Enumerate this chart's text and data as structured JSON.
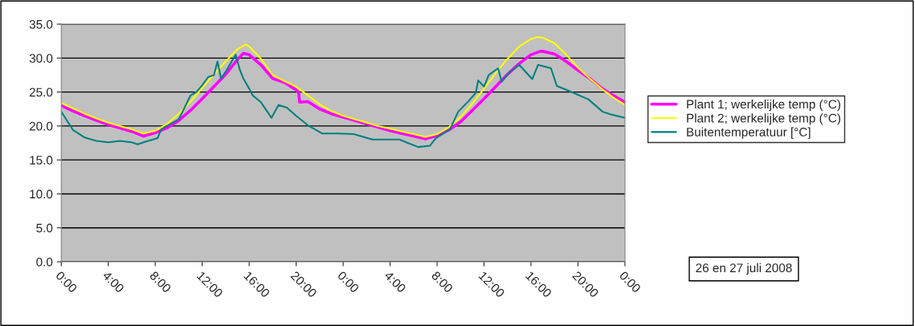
{
  "chart_data": {
    "type": "line",
    "xlim": [
      "2008-07-26T00:00",
      "2008-07-28T00:00"
    ],
    "ylim": [
      0,
      35
    ],
    "xticks": [
      {
        "value": "2008-07-26T00:00",
        "label": "0:00"
      },
      {
        "value": "2008-07-26T04:00",
        "label": "4:00"
      },
      {
        "value": "2008-07-26T08:00",
        "label": "8:00"
      },
      {
        "value": "2008-07-26T12:00",
        "label": "12:00"
      },
      {
        "value": "2008-07-26T16:00",
        "label": "16:00"
      },
      {
        "value": "2008-07-26T20:00",
        "label": "20:00"
      },
      {
        "value": "2008-07-27T00:00",
        "label": "0:00"
      },
      {
        "value": "2008-07-27T04:00",
        "label": "4:00"
      },
      {
        "value": "2008-07-27T08:00",
        "label": "8:00"
      },
      {
        "value": "2008-07-27T12:00",
        "label": "12:00"
      },
      {
        "value": "2008-07-27T16:00",
        "label": "16:00"
      },
      {
        "value": "2008-07-27T20:00",
        "label": "20:00"
      },
      {
        "value": "2008-07-28T00:00",
        "label": "0:00"
      }
    ],
    "yticks": [
      {
        "value": 0,
        "label": "0.0"
      },
      {
        "value": 5,
        "label": "5.0"
      },
      {
        "value": 10,
        "label": "10.0"
      },
      {
        "value": 15,
        "label": "15.0"
      },
      {
        "value": 20,
        "label": "20.0"
      },
      {
        "value": 25,
        "label": "25.0"
      },
      {
        "value": 30,
        "label": "30.0"
      },
      {
        "value": 35,
        "label": "35.0"
      }
    ],
    "grid": "y",
    "legend": "right",
    "marker": "none",
    "line_style": "solid",
    "annotations": [
      "26 en 27 juli 2008"
    ],
    "series": [
      {
        "name": "Plant 1; werkelijke temp (°C)",
        "color": "#ff00ff",
        "x": [
          "2008-07-26T00:00",
          "2008-07-26T01:00",
          "2008-07-26T02:00",
          "2008-07-26T03:00",
          "2008-07-26T04:00",
          "2008-07-26T05:00",
          "2008-07-26T06:00",
          "2008-07-26T07:00",
          "2008-07-26T08:00",
          "2008-07-26T09:00",
          "2008-07-26T10:00",
          "2008-07-26T11:00",
          "2008-07-26T12:00",
          "2008-07-26T13:00",
          "2008-07-26T14:00",
          "2008-07-26T15:00",
          "2008-07-26T15:30",
          "2008-07-26T16:00",
          "2008-07-26T17:00",
          "2008-07-26T18:00",
          "2008-07-26T19:00",
          "2008-07-26T20:00",
          "2008-07-26T20:12",
          "2008-07-26T20:18",
          "2008-07-26T21:00",
          "2008-07-26T22:00",
          "2008-07-26T23:00",
          "2008-07-27T00:00",
          "2008-07-27T01:00",
          "2008-07-27T02:00",
          "2008-07-27T03:00",
          "2008-07-27T04:00",
          "2008-07-27T05:00",
          "2008-07-27T06:00",
          "2008-07-27T07:00",
          "2008-07-27T08:00",
          "2008-07-27T09:00",
          "2008-07-27T10:00",
          "2008-07-27T11:00",
          "2008-07-27T12:00",
          "2008-07-27T13:00",
          "2008-07-27T14:00",
          "2008-07-27T15:00",
          "2008-07-27T16:00",
          "2008-07-27T16:48",
          "2008-07-27T17:00",
          "2008-07-27T18:00",
          "2008-07-27T19:00",
          "2008-07-27T20:00",
          "2008-07-27T21:00",
          "2008-07-27T22:00",
          "2008-07-27T23:00",
          "2008-07-28T00:00"
        ],
        "values": [
          23.0,
          22.2,
          21.5,
          20.8,
          20.2,
          19.7,
          19.2,
          18.5,
          19.0,
          19.7,
          20.8,
          22.3,
          24.0,
          25.8,
          27.6,
          29.8,
          30.7,
          30.5,
          29.0,
          27.0,
          26.4,
          25.3,
          25.0,
          23.5,
          23.6,
          22.5,
          21.8,
          21.3,
          20.8,
          20.3,
          19.8,
          19.3,
          18.9,
          18.5,
          18.1,
          18.6,
          19.4,
          20.6,
          22.3,
          24.0,
          25.8,
          27.6,
          29.2,
          30.5,
          31.0,
          31.0,
          30.6,
          29.5,
          28.2,
          27.0,
          25.6,
          24.5,
          23.5
        ]
      },
      {
        "name": "Plant 2; werkelijke temp (°C)",
        "color": "#ffff00",
        "x": [
          "2008-07-26T00:00",
          "2008-07-26T01:00",
          "2008-07-26T02:00",
          "2008-07-26T03:00",
          "2008-07-26T04:00",
          "2008-07-26T05:00",
          "2008-07-26T06:00",
          "2008-07-26T07:00",
          "2008-07-26T08:00",
          "2008-07-26T09:00",
          "2008-07-26T10:00",
          "2008-07-26T11:00",
          "2008-07-26T12:00",
          "2008-07-26T13:00",
          "2008-07-26T14:00",
          "2008-07-26T15:00",
          "2008-07-26T15:42",
          "2008-07-26T16:00",
          "2008-07-26T17:00",
          "2008-07-26T18:00",
          "2008-07-26T19:00",
          "2008-07-26T20:00",
          "2008-07-26T21:00",
          "2008-07-26T22:00",
          "2008-07-26T23:00",
          "2008-07-27T00:00",
          "2008-07-27T01:00",
          "2008-07-27T02:00",
          "2008-07-27T03:00",
          "2008-07-27T04:00",
          "2008-07-27T05:00",
          "2008-07-27T06:00",
          "2008-07-27T07:00",
          "2008-07-27T08:00",
          "2008-07-27T09:00",
          "2008-07-27T10:00",
          "2008-07-27T11:00",
          "2008-07-27T12:00",
          "2008-07-27T13:00",
          "2008-07-27T14:00",
          "2008-07-27T15:00",
          "2008-07-27T16:00",
          "2008-07-27T16:30",
          "2008-07-27T17:00",
          "2008-07-27T18:00",
          "2008-07-27T19:00",
          "2008-07-27T20:00",
          "2008-07-27T21:00",
          "2008-07-27T22:00",
          "2008-07-27T23:00",
          "2008-07-28T00:00"
        ],
        "values": [
          23.4,
          22.6,
          21.8,
          21.1,
          20.5,
          20.0,
          19.5,
          18.9,
          19.3,
          20.3,
          21.8,
          23.6,
          25.6,
          27.6,
          29.5,
          31.3,
          32.0,
          31.7,
          29.9,
          27.5,
          26.6,
          25.8,
          24.5,
          23.2,
          22.2,
          21.5,
          21.0,
          20.5,
          20.0,
          19.6,
          19.2,
          18.8,
          18.4,
          18.8,
          19.8,
          21.3,
          23.3,
          25.5,
          27.8,
          29.9,
          31.7,
          32.8,
          33.1,
          33.0,
          32.2,
          30.5,
          28.6,
          27.0,
          25.5,
          24.2,
          23.1
        ]
      },
      {
        "name": "Buitentemperatuur [°C]",
        "color": "#008080",
        "x": [
          "2008-07-26T00:00",
          "2008-07-26T01:00",
          "2008-07-26T02:00",
          "2008-07-26T03:00",
          "2008-07-26T04:00",
          "2008-07-26T05:00",
          "2008-07-26T06:00",
          "2008-07-26T06:30",
          "2008-07-26T07:00",
          "2008-07-26T08:12",
          "2008-07-26T08:30",
          "2008-07-26T09:00",
          "2008-07-26T10:00",
          "2008-07-26T10:30",
          "2008-07-26T11:00",
          "2008-07-26T11:30",
          "2008-07-26T12:00",
          "2008-07-26T12:30",
          "2008-07-26T13:00",
          "2008-07-26T13:18",
          "2008-07-26T13:36",
          "2008-07-26T14:00",
          "2008-07-26T14:51",
          "2008-07-26T15:12",
          "2008-07-26T15:30",
          "2008-07-26T16:00",
          "2008-07-26T16:18",
          "2008-07-26T17:00",
          "2008-07-26T17:54",
          "2008-07-26T18:30",
          "2008-07-26T19:12",
          "2008-07-26T20:00",
          "2008-07-26T21:00",
          "2008-07-26T22:12",
          "2008-07-26T23:30",
          "2008-07-27T00:54",
          "2008-07-27T02:30",
          "2008-07-27T04:48",
          "2008-07-27T05:30",
          "2008-07-27T06:24",
          "2008-07-27T07:24",
          "2008-07-27T07:54",
          "2008-07-27T09:06",
          "2008-07-27T09:48",
          "2008-07-27T10:42",
          "2008-07-27T11:18",
          "2008-07-27T11:30",
          "2008-07-27T12:00",
          "2008-07-27T12:24",
          "2008-07-27T13:12",
          "2008-07-27T13:30",
          "2008-07-27T14:12",
          "2008-07-27T15:00",
          "2008-07-27T16:06",
          "2008-07-27T16:36",
          "2008-07-27T17:42",
          "2008-07-27T18:12",
          "2008-07-27T19:36",
          "2008-07-27T20:54",
          "2008-07-27T22:06",
          "2008-07-27T22:48",
          "2008-07-28T00:00"
        ],
        "values": [
          22.1,
          19.4,
          18.3,
          17.8,
          17.6,
          17.8,
          17.6,
          17.3,
          17.6,
          18.2,
          19.5,
          20.0,
          21.0,
          22.7,
          24.5,
          25.0,
          26.0,
          27.2,
          27.5,
          29.5,
          27.0,
          28.0,
          30.5,
          28.3,
          27.0,
          25.5,
          24.5,
          23.5,
          21.2,
          23.1,
          22.7,
          21.5,
          20.1,
          18.9,
          18.9,
          18.8,
          18.0,
          18.0,
          17.5,
          16.9,
          17.1,
          18.2,
          19.5,
          22.1,
          23.7,
          24.9,
          26.7,
          25.8,
          27.5,
          28.5,
          26.5,
          28.0,
          29.0,
          26.9,
          29.0,
          28.5,
          25.9,
          24.9,
          23.9,
          22.1,
          21.7,
          21.2
        ]
      }
    ]
  }
}
